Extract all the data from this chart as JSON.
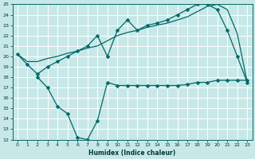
{
  "xlabel": "Humidex (Indice chaleur)",
  "bg_color": "#c8e8e8",
  "grid_color": "#ffffff",
  "line_color": "#006868",
  "line1_x": [
    0,
    1,
    2,
    3,
    4,
    5,
    6,
    7,
    8,
    9,
    10,
    11,
    12,
    13,
    14,
    15,
    16,
    17,
    18,
    19,
    20,
    21,
    22,
    23
  ],
  "line1_y": [
    20.2,
    19.2,
    18.3,
    19.0,
    19.5,
    20.0,
    20.5,
    21.0,
    22.0,
    20.0,
    22.5,
    23.5,
    22.5,
    23.0,
    23.2,
    23.5,
    24.0,
    24.5,
    25.0,
    25.0,
    24.5,
    22.5,
    20.0,
    17.5
  ],
  "line2_x": [
    0,
    1,
    2,
    3,
    4,
    5,
    6,
    7,
    8,
    9,
    10,
    11,
    12,
    13,
    14,
    15,
    16,
    17,
    18,
    19,
    20,
    21,
    22,
    23
  ],
  "line2_y": [
    20.2,
    19.5,
    19.5,
    19.8,
    20.0,
    20.3,
    20.5,
    20.8,
    21.0,
    21.5,
    22.0,
    22.3,
    22.5,
    22.8,
    23.0,
    23.2,
    23.5,
    23.8,
    24.3,
    24.8,
    25.0,
    24.5,
    22.2,
    17.5
  ],
  "line3_x": [
    2,
    3,
    4,
    5,
    6,
    7,
    8,
    9,
    10,
    11,
    12,
    13,
    14,
    15,
    16,
    17,
    18,
    19,
    20,
    21,
    22,
    23
  ],
  "line3_y": [
    18.0,
    17.0,
    15.2,
    14.5,
    12.2,
    12.0,
    13.8,
    17.5,
    17.2,
    17.2,
    17.2,
    17.2,
    17.2,
    17.2,
    17.2,
    17.3,
    17.5,
    17.5,
    17.7,
    17.7,
    17.7,
    17.7
  ],
  "ylim": [
    12,
    25
  ],
  "xlim": [
    0,
    23
  ],
  "yticks": [
    12,
    13,
    14,
    15,
    16,
    17,
    18,
    19,
    20,
    21,
    22,
    23,
    24,
    25
  ],
  "xticks": [
    0,
    1,
    2,
    3,
    4,
    5,
    6,
    7,
    8,
    9,
    10,
    11,
    12,
    13,
    14,
    15,
    16,
    17,
    18,
    19,
    20,
    21,
    22,
    23
  ],
  "marker": "D",
  "markersize": 2.5,
  "linewidth": 0.9,
  "tick_fontsize": 4.5,
  "xlabel_fontsize": 5.5
}
